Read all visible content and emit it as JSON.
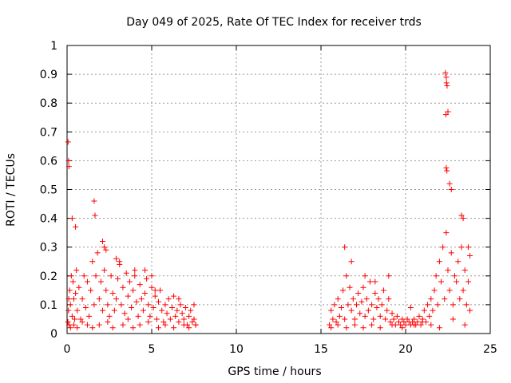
{
  "chart_data": {
    "type": "scatter",
    "title": "Day 049 of 2025, Rate Of TEC Index for receiver trds",
    "xlabel": "GPS time / hours",
    "ylabel": "ROTI / TECUs",
    "xlim": [
      0,
      25
    ],
    "ylim": [
      0,
      1
    ],
    "grid": true,
    "marker": "+",
    "marker_color": "#ff0000",
    "x_ticks": [
      0,
      5,
      10,
      15,
      20,
      25
    ],
    "y_ticks": [
      0,
      0.1,
      0.2,
      0.3,
      0.4,
      0.5,
      0.6,
      0.7,
      0.8,
      0.9,
      1
    ],
    "x_tick_labels": [
      "0",
      "5",
      "10",
      "15",
      "20",
      "25"
    ],
    "y_tick_labels": [
      "0",
      "0.1",
      "0.2",
      "0.3",
      "0.4",
      "0.5",
      "0.6",
      "0.7",
      "0.8",
      "0.9",
      "1"
    ],
    "series": [
      {
        "x": [
          0.05,
          0.08,
          0.1,
          0.12,
          0.15,
          0.2,
          0.25,
          0.3,
          0.35,
          0.4,
          0.45,
          0.5,
          0.55,
          0.6,
          0.7,
          0.8,
          0.9,
          1.0,
          1.1,
          1.2,
          1.3,
          1.4,
          1.5,
          1.6,
          1.7,
          1.8,
          1.9,
          2.0,
          2.1,
          2.2,
          2.3,
          2.4,
          2.5,
          2.6,
          2.7,
          2.8,
          2.9,
          3.0,
          3.1,
          3.2,
          3.3,
          3.4,
          3.5,
          3.6,
          3.7,
          3.8,
          3.9,
          4.0,
          4.1,
          4.2,
          4.3,
          4.4,
          4.5,
          4.6,
          4.7,
          4.8,
          4.9,
          5.0,
          5.1,
          5.2,
          5.3,
          5.4,
          5.5,
          5.6,
          5.7,
          5.8,
          5.9,
          6.0,
          6.1,
          6.2,
          6.3,
          6.4,
          6.5,
          6.6,
          6.7,
          6.8,
          6.9,
          7.0,
          7.1,
          7.2,
          7.3,
          7.4,
          7.5,
          7.6,
          0.06,
          0.09,
          0.11,
          0.3,
          0.5,
          1.6,
          1.65,
          2.1,
          2.2,
          2.3,
          2.9,
          3.1,
          4.0,
          4.6,
          5.0,
          5.2,
          6.6,
          7.5,
          0.2,
          0.4,
          0.6,
          0.9,
          1.2,
          1.5,
          1.9,
          2.4,
          2.7,
          3.3,
          3.6,
          3.9,
          4.3,
          4.8,
          5.4,
          5.8,
          6.3,
          6.9,
          7.2,
          7.6
        ],
        "y": [
          0.04,
          0.08,
          0.12,
          0.03,
          0.15,
          0.1,
          0.2,
          0.06,
          0.18,
          0.12,
          0.05,
          0.14,
          0.22,
          0.08,
          0.16,
          0.05,
          0.12,
          0.2,
          0.09,
          0.18,
          0.06,
          0.15,
          0.25,
          0.1,
          0.2,
          0.28,
          0.12,
          0.18,
          0.08,
          0.22,
          0.15,
          0.1,
          0.06,
          0.2,
          0.14,
          0.08,
          0.12,
          0.19,
          0.24,
          0.1,
          0.16,
          0.07,
          0.21,
          0.13,
          0.18,
          0.09,
          0.15,
          0.2,
          0.11,
          0.06,
          0.17,
          0.12,
          0.08,
          0.14,
          0.19,
          0.1,
          0.06,
          0.16,
          0.09,
          0.13,
          0.05,
          0.11,
          0.15,
          0.08,
          0.04,
          0.1,
          0.07,
          0.12,
          0.05,
          0.09,
          0.13,
          0.06,
          0.08,
          0.04,
          0.1,
          0.07,
          0.05,
          0.09,
          0.03,
          0.06,
          0.08,
          0.04,
          0.05,
          0.03,
          0.665,
          0.6,
          0.58,
          0.4,
          0.37,
          0.46,
          0.41,
          0.32,
          0.3,
          0.29,
          0.26,
          0.25,
          0.22,
          0.22,
          0.2,
          0.15,
          0.12,
          0.1,
          0.02,
          0.03,
          0.02,
          0.04,
          0.03,
          0.02,
          0.03,
          0.04,
          0.02,
          0.03,
          0.05,
          0.02,
          0.03,
          0.04,
          0.02,
          0.03,
          0.02,
          0.03,
          0.02,
          0.03
        ]
      },
      {
        "x": [
          15.5,
          15.6,
          15.7,
          15.8,
          15.9,
          16.0,
          16.1,
          16.2,
          16.3,
          16.4,
          16.5,
          16.6,
          16.7,
          16.8,
          16.9,
          17.0,
          17.1,
          17.2,
          17.3,
          17.4,
          17.5,
          17.6,
          17.7,
          17.8,
          17.9,
          18.0,
          18.1,
          18.2,
          18.3,
          18.4,
          18.5,
          18.6,
          18.7,
          18.8,
          18.9,
          19.0,
          19.1,
          19.2,
          19.3,
          19.4,
          19.5,
          19.6,
          19.7,
          19.8,
          19.9,
          20.0,
          20.1,
          20.2,
          20.3,
          20.4,
          20.5,
          20.6,
          20.7,
          20.8,
          20.9,
          21.0,
          21.1,
          21.2,
          21.3,
          21.4,
          21.5,
          21.6,
          21.7,
          21.8,
          21.9,
          22.0,
          22.1,
          22.2,
          22.3,
          22.4,
          22.5,
          22.6,
          22.7,
          22.8,
          22.9,
          23.0,
          23.1,
          23.2,
          23.3,
          23.4,
          23.5,
          23.6,
          23.7,
          23.8,
          16.4,
          16.8,
          17.6,
          18.2,
          19.0,
          20.3,
          22.35,
          22.4,
          22.42,
          22.45,
          22.5,
          22.38,
          22.4,
          22.44,
          22.6,
          22.7,
          23.3,
          23.4,
          23.7,
          23.8,
          15.6,
          16.0,
          16.5,
          17.0,
          17.5,
          18.0,
          18.5,
          19.2,
          19.8,
          20.5,
          21.0,
          21.5,
          22.0,
          22.8,
          23.5
        ],
        "y": [
          0.03,
          0.08,
          0.05,
          0.1,
          0.04,
          0.12,
          0.06,
          0.09,
          0.15,
          0.05,
          0.2,
          0.1,
          0.16,
          0.08,
          0.12,
          0.05,
          0.1,
          0.14,
          0.07,
          0.11,
          0.16,
          0.06,
          0.12,
          0.08,
          0.18,
          0.1,
          0.05,
          0.14,
          0.09,
          0.12,
          0.06,
          0.1,
          0.15,
          0.05,
          0.08,
          0.12,
          0.04,
          0.07,
          0.05,
          0.03,
          0.06,
          0.04,
          0.03,
          0.05,
          0.04,
          0.03,
          0.05,
          0.04,
          0.03,
          0.04,
          0.05,
          0.03,
          0.04,
          0.06,
          0.03,
          0.05,
          0.08,
          0.04,
          0.1,
          0.06,
          0.12,
          0.08,
          0.15,
          0.2,
          0.1,
          0.25,
          0.18,
          0.3,
          0.12,
          0.35,
          0.22,
          0.15,
          0.28,
          0.1,
          0.2,
          0.18,
          0.25,
          0.12,
          0.3,
          0.15,
          0.22,
          0.1,
          0.18,
          0.08,
          0.3,
          0.25,
          0.2,
          0.18,
          0.2,
          0.09,
          0.905,
          0.89,
          0.87,
          0.86,
          0.77,
          0.76,
          0.575,
          0.565,
          0.52,
          0.5,
          0.41,
          0.4,
          0.3,
          0.27,
          0.02,
          0.03,
          0.02,
          0.03,
          0.02,
          0.03,
          0.02,
          0.03,
          0.02,
          0.03,
          0.04,
          0.03,
          0.02,
          0.05,
          0.03
        ]
      }
    ]
  }
}
